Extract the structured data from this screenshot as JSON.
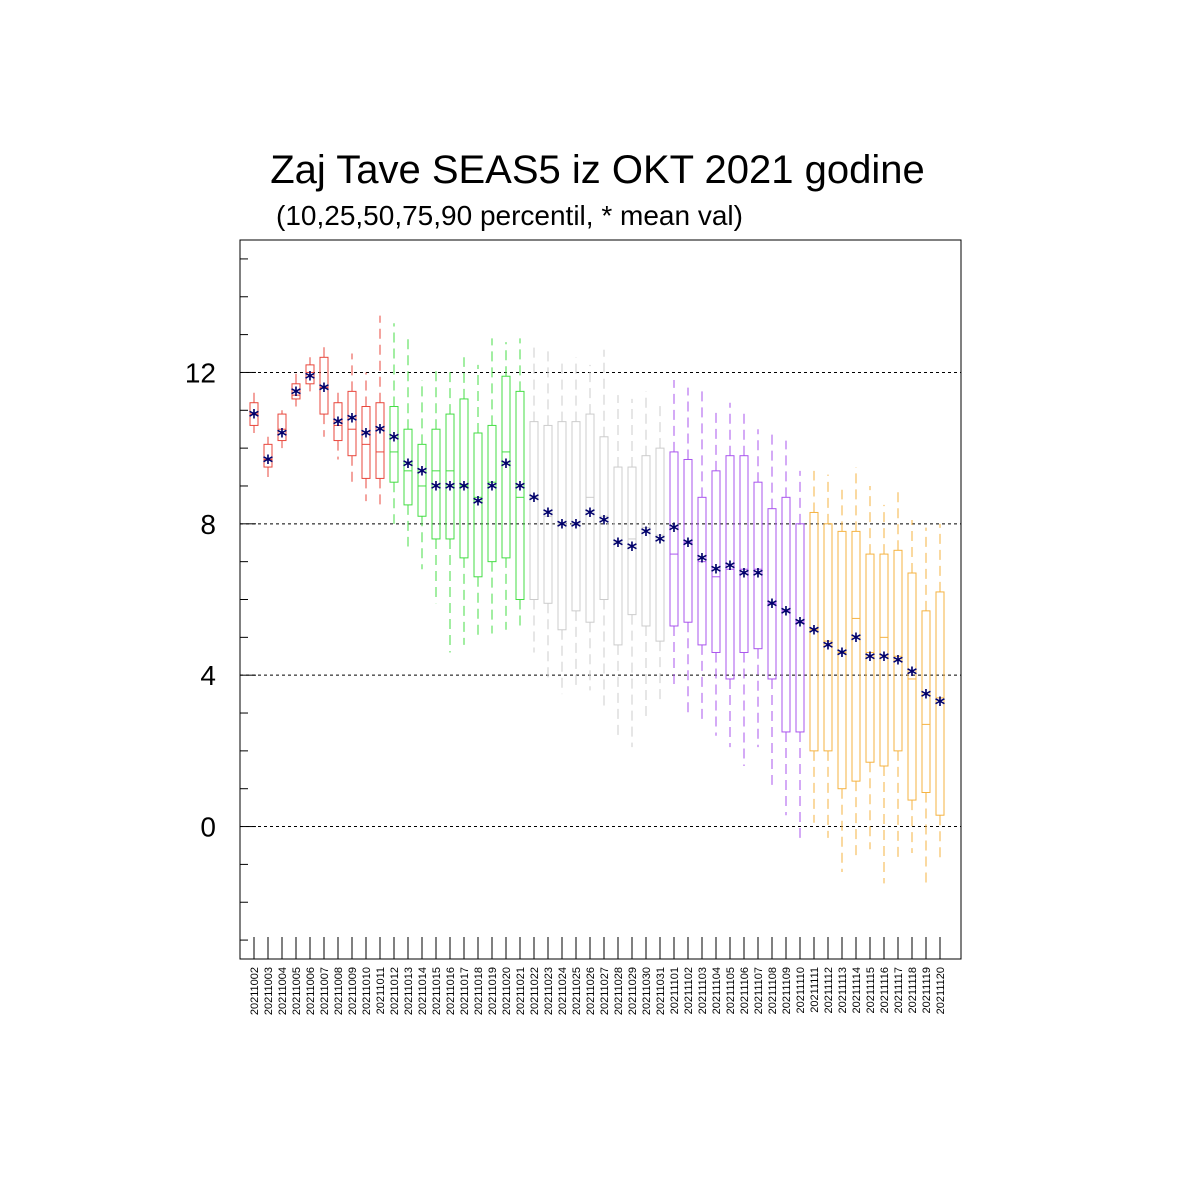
{
  "chart_data": {
    "type": "boxplot",
    "title": "Zaj Tave SEAS5 iz OKT 2021 godine",
    "subtitle": "(10,25,50,75,90 percentil, * mean val)",
    "xlabel": "",
    "ylabel": "",
    "ylim": [
      -3.5,
      15.5
    ],
    "y_ticks": [
      0,
      4,
      8,
      12
    ],
    "grid_y": [
      0,
      4,
      8,
      12
    ],
    "categories": [
      "20211002",
      "20211003",
      "20211004",
      "20211005",
      "20211006",
      "20211007",
      "20211008",
      "20211009",
      "20211010",
      "20211011",
      "20211012",
      "20211013",
      "20211014",
      "20211015",
      "20211016",
      "20211017",
      "20211018",
      "20211019",
      "20211020",
      "20211021",
      "20211022",
      "20211023",
      "20211024",
      "20211025",
      "20211026",
      "20211027",
      "20211028",
      "20211029",
      "20211030",
      "20211031",
      "20211101",
      "20211102",
      "20211103",
      "20211104",
      "20211105",
      "20211106",
      "20211107",
      "20211108",
      "20211109",
      "20211110",
      "20211111",
      "20211112",
      "20211113",
      "20211114",
      "20211115",
      "20211116",
      "20211117",
      "20211118",
      "20211119",
      "20211120"
    ],
    "colors": {
      "red": "#e8473c",
      "green": "#44dd44",
      "grey": "#cccccc",
      "purple": "#aa55ee",
      "orange": "#f5b342",
      "mean": "#00006b"
    },
    "box_colors": [
      "red",
      "red",
      "red",
      "red",
      "red",
      "red",
      "red",
      "red",
      "red",
      "red",
      "green",
      "green",
      "green",
      "green",
      "green",
      "green",
      "green",
      "green",
      "green",
      "green",
      "grey",
      "grey",
      "grey",
      "grey",
      "grey",
      "grey",
      "grey",
      "grey",
      "grey",
      "grey",
      "purple",
      "purple",
      "purple",
      "purple",
      "purple",
      "purple",
      "purple",
      "purple",
      "purple",
      "purple",
      "orange",
      "orange",
      "orange",
      "orange",
      "orange",
      "orange",
      "orange",
      "orange",
      "orange",
      "orange"
    ],
    "p10": [
      10.4,
      9.1,
      10.0,
      11.1,
      11.5,
      10.3,
      9.7,
      9.1,
      8.6,
      8.4,
      8.0,
      7.4,
      6.8,
      5.9,
      4.6,
      4.8,
      5.0,
      5.1,
      5.2,
      5.3,
      4.6,
      3.8,
      3.5,
      3.6,
      3.6,
      3.1,
      2.4,
      2.1,
      2.9,
      3.3,
      3.7,
      2.9,
      2.8,
      2.4,
      2.1,
      1.6,
      2.1,
      1.1,
      0.3,
      -0.3,
      0.1,
      -0.3,
      -1.2,
      -0.9,
      -0.6,
      -1.5,
      -0.8,
      -0.7,
      -1.5,
      -0.9
    ],
    "p25": [
      10.6,
      9.5,
      10.2,
      11.3,
      11.7,
      10.9,
      10.2,
      9.8,
      9.2,
      9.2,
      9.1,
      8.5,
      8.2,
      7.6,
      7.6,
      7.1,
      6.6,
      7.0,
      7.1,
      6.0,
      6.0,
      5.9,
      5.2,
      5.7,
      5.4,
      6.0,
      4.8,
      5.6,
      5.3,
      4.9,
      5.3,
      5.4,
      4.8,
      4.6,
      3.9,
      4.6,
      4.7,
      3.9,
      2.5,
      2.5,
      2.0,
      2.0,
      1.0,
      1.2,
      1.7,
      1.6,
      2.0,
      0.7,
      0.9,
      0.3
    ],
    "p50": [
      10.9,
      9.7,
      10.5,
      11.4,
      12.0,
      11.6,
      10.6,
      10.5,
      10.1,
      9.9,
      9.9,
      9.4,
      9.0,
      9.4,
      9.4,
      9.0,
      8.7,
      9.1,
      9.9,
      8.7,
      8.7,
      8.2,
      8.0,
      8.0,
      8.7,
      8.2,
      7.5,
      7.6,
      7.9,
      7.7,
      7.2,
      7.5,
      7.0,
      6.6,
      6.8,
      6.8,
      6.8,
      5.9,
      5.7,
      5.4,
      5.2,
      4.9,
      4.6,
      5.5,
      4.6,
      5.0,
      4.5,
      3.9,
      2.7,
      3.4
    ],
    "p75": [
      11.2,
      10.1,
      10.9,
      11.7,
      12.2,
      12.4,
      11.2,
      11.5,
      11.1,
      11.2,
      11.1,
      10.5,
      10.1,
      10.5,
      10.9,
      11.3,
      10.4,
      10.6,
      11.9,
      11.5,
      10.7,
      10.6,
      10.7,
      10.7,
      10.9,
      10.3,
      9.5,
      9.5,
      9.8,
      10.0,
      9.9,
      9.7,
      8.7,
      9.4,
      9.8,
      9.8,
      9.1,
      8.4,
      8.7,
      8.0,
      8.3,
      8.0,
      7.8,
      7.8,
      7.2,
      7.2,
      7.3,
      6.7,
      5.7,
      6.2
    ],
    "p90": [
      11.5,
      10.3,
      11.0,
      12.0,
      12.4,
      12.7,
      11.6,
      12.5,
      12.0,
      13.5,
      13.3,
      12.9,
      11.8,
      12.1,
      12.1,
      12.4,
      12.2,
      12.9,
      12.8,
      12.9,
      12.7,
      12.6,
      12.3,
      12.4,
      12.2,
      12.6,
      11.4,
      11.3,
      11.5,
      11.2,
      11.8,
      11.6,
      11.5,
      11.0,
      11.2,
      11.0,
      10.5,
      10.5,
      10.2,
      9.4,
      9.4,
      9.3,
      8.9,
      9.5,
      9.0,
      8.5,
      8.9,
      8.1,
      7.9,
      8.0
    ],
    "mean": [
      10.9,
      9.7,
      10.4,
      11.5,
      11.9,
      11.6,
      10.7,
      10.8,
      10.4,
      10.5,
      10.3,
      9.6,
      9.4,
      9.0,
      9.0,
      9.0,
      8.6,
      9.0,
      9.6,
      9.0,
      8.7,
      8.3,
      8.0,
      8.0,
      8.3,
      8.1,
      7.5,
      7.4,
      7.8,
      7.6,
      7.9,
      7.5,
      7.1,
      6.8,
      6.9,
      6.7,
      6.7,
      5.9,
      5.7,
      5.4,
      5.2,
      4.8,
      4.6,
      5.0,
      4.5,
      4.5,
      4.4,
      4.1,
      3.5,
      3.3
    ]
  }
}
